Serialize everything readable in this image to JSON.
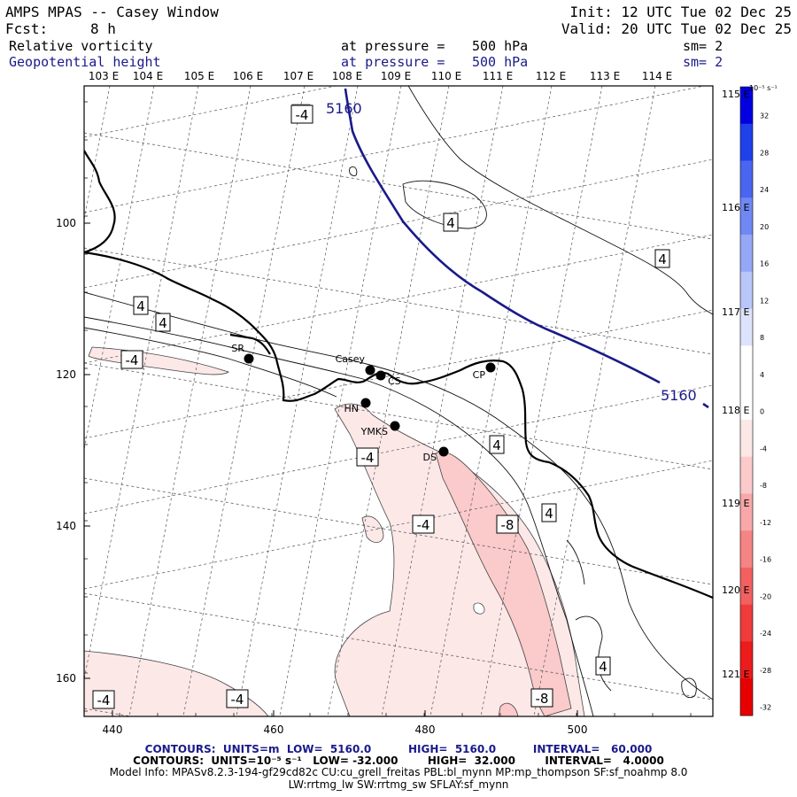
{
  "header": {
    "title": "AMPS MPAS -- Casey Window",
    "fcst_label": "Fcst:",
    "fcst_value": "8 h",
    "init": "Init: 12 UTC Tue 02 Dec 25",
    "valid": "Valid: 20 UTC Tue 02 Dec 25",
    "field1": {
      "name": "Relative vorticity",
      "pressure_label": "at pressure =",
      "pressure": "500 hPa",
      "sm": "sm= 2"
    },
    "field2": {
      "name": "Geopotential height",
      "pressure_label": "at pressure =",
      "pressure": "500 hPa",
      "sm": "sm= 2"
    }
  },
  "map": {
    "lon_top_labels": [
      "103 E",
      "104 E",
      "105 E",
      "106 E",
      "107 E",
      "108 E",
      "109 E",
      "110 E",
      "111 E",
      "112 E",
      "113 E",
      "114 E"
    ],
    "lat_right_labels": [
      "115 E",
      "116 E",
      "117 E",
      "118 E",
      "119 E",
      "120 E",
      "121 E"
    ],
    "x_ticks": [
      "440",
      "460",
      "480",
      "500"
    ],
    "y_ticks": [
      "100",
      "120",
      "140",
      "160"
    ],
    "stations": [
      {
        "name": "SR"
      },
      {
        "name": "Casey"
      },
      {
        "name": "CS"
      },
      {
        "name": "CP"
      },
      {
        "name": "HN"
      },
      {
        "name": "YMKS"
      },
      {
        "name": "DS"
      }
    ],
    "height_contour_labels": [
      "5160",
      "5160"
    ],
    "vort_labels": [
      "-4",
      "4",
      "4",
      "4",
      "4",
      "-4",
      "-4",
      "4",
      "-4",
      "-8",
      "4",
      "4",
      "-4",
      "-4",
      "-8"
    ]
  },
  "colorbar": {
    "unit": "10⁻⁵ s⁻¹",
    "ticks": [
      "32",
      "28",
      "24",
      "20",
      "16",
      "12",
      "8",
      "4",
      "0",
      "-4",
      "-8",
      "-12",
      "-16",
      "-20",
      "-24",
      "-28",
      "-32"
    ],
    "colors": [
      "#0000e0",
      "#2040ea",
      "#4a66f0",
      "#6f88f4",
      "#95a8f6",
      "#b8c6f8",
      "#dce3fb",
      "#ffffff",
      "#ffffff",
      "#fde8e8",
      "#fbcaca",
      "#f8a8a8",
      "#f58484",
      "#f26060",
      "#ee3c3c",
      "#ea1c1c",
      "#e60000"
    ]
  },
  "footer": {
    "line1": "CONTOURS:  UNITS=m  LOW=  5160.0          HIGH=  5160.0          INTERVAL=   60.000",
    "line2": "CONTOURS:  UNITS=10⁻⁵ s⁻¹   LOW= -32.000        HIGH=  32.000        INTERVAL=   4.0000",
    "line3": "Model Info: MPASv8.2.3-194-gf29cd82c CU:cu_grell_freitas PBL:bl_mynn MP:mp_thompson SF:sf_noahmp 8.0",
    "line4": "LW:rrtmg_lw SW:rrtmg_sw SFLAY:sf_mynn"
  }
}
